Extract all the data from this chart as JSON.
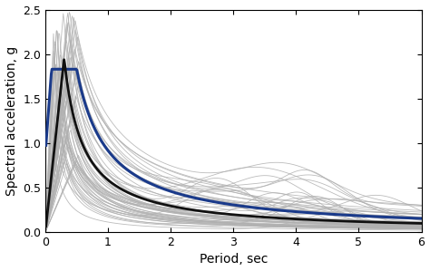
{
  "xlim": [
    0,
    6
  ],
  "ylim": [
    0,
    2.5
  ],
  "xlabel": "Period, sec",
  "ylabel": "Spectral acceleration, g",
  "xticks": [
    0,
    1,
    2,
    3,
    4,
    5,
    6
  ],
  "yticks": [
    0,
    0.5,
    1,
    1.5,
    2,
    2.5
  ],
  "gray_color": "#b0b0b0",
  "black_color": "#111111",
  "blue_color": "#1a3a8a",
  "n_gray_curves": 58,
  "seed": 7,
  "mean_peak_T": 0.3,
  "mean_peak_val": 1.95,
  "mean_val_at_0": 0.0,
  "mean_decay": 1.0,
  "uhs_val_low": 0.88,
  "uhs_val_flat": 1.83,
  "uhs_flat_start": 0.1,
  "uhs_flat_end": 0.5,
  "uhs_decay": 1.0
}
